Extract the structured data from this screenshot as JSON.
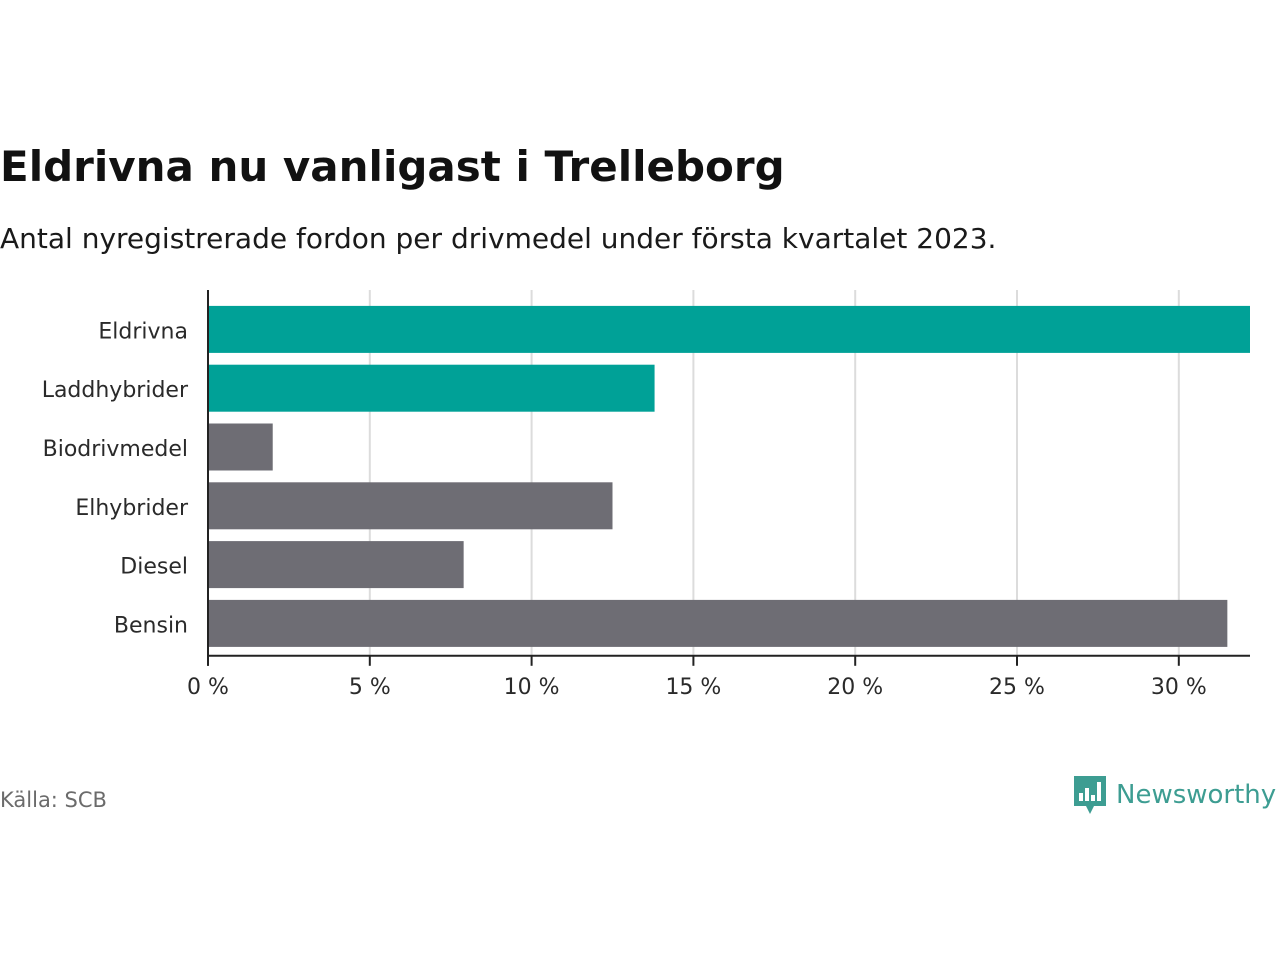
{
  "title": "Eldrivna nu vanligast i Trelleborg",
  "subtitle": "Antal nyregistrerade fordon per drivmedel under första kvartalet 2023.",
  "source": "Källa: SCB",
  "brand": {
    "name": "Newsworthy",
    "icon": "newsworthy-logo-icon"
  },
  "colors": {
    "highlight": "#00a197",
    "default": "#6e6d74",
    "grid": "#dcdcdc",
    "axis": "#222222",
    "brand": "#3d9d92"
  },
  "chart_data": {
    "type": "bar",
    "orientation": "horizontal",
    "categories": [
      "Eldrivna",
      "Laddhybrider",
      "Biodrivmedel",
      "Elhybrider",
      "Diesel",
      "Bensin"
    ],
    "values": [
      32.2,
      13.8,
      2.0,
      12.5,
      7.9,
      31.5
    ],
    "highlighted": [
      true,
      true,
      false,
      false,
      false,
      false
    ],
    "xlim": [
      0,
      32.2
    ],
    "xticks": [
      0,
      5,
      10,
      15,
      20,
      25,
      30
    ],
    "tick_labels": [
      "0 %",
      "5 %",
      "10 %",
      "15 %",
      "20 %",
      "25 %",
      "30 %"
    ],
    "grid": true
  }
}
